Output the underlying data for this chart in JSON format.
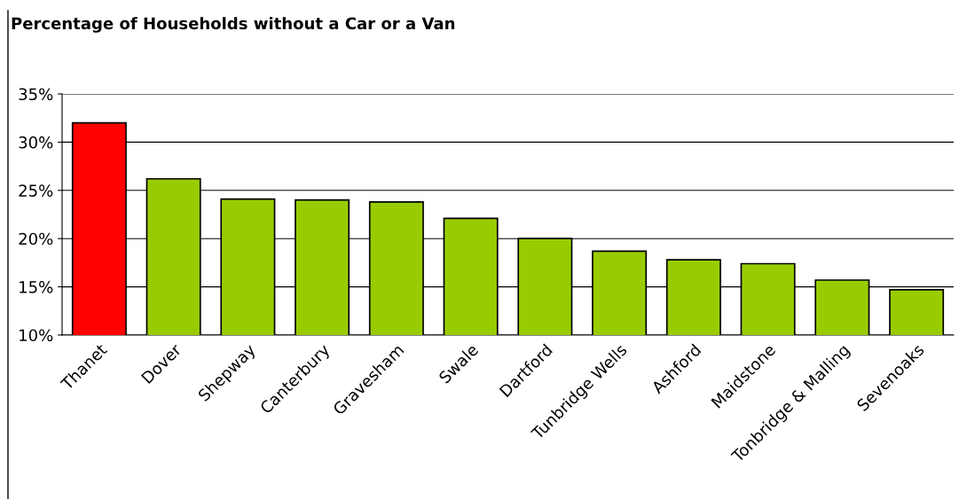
{
  "chart_data": {
    "type": "bar",
    "title": "Percentage of Households without a Car or a Van",
    "categories": [
      "Thanet",
      "Dover",
      "Shepway",
      "Canterbury",
      "Gravesham",
      "Swale",
      "Dartford",
      "Tunbridge Wells",
      "Ashford",
      "Maidstone",
      "Tonbridge & Malling",
      "Sevenoaks"
    ],
    "values": [
      32.0,
      26.2,
      24.1,
      24.0,
      23.8,
      22.1,
      20.0,
      18.7,
      17.8,
      17.4,
      15.7,
      14.7
    ],
    "colors": [
      "#ff0000",
      "#99cc00",
      "#99cc00",
      "#99cc00",
      "#99cc00",
      "#99cc00",
      "#99cc00",
      "#99cc00",
      "#99cc00",
      "#99cc00",
      "#99cc00",
      "#99cc00"
    ],
    "ylim": [
      10,
      35
    ],
    "yticks": [
      {
        "value": 10,
        "label": "10%"
      },
      {
        "value": 15,
        "label": "15%"
      },
      {
        "value": 20,
        "label": "20%"
      },
      {
        "value": 25,
        "label": "25%"
      },
      {
        "value": 30,
        "label": "30%"
      },
      {
        "value": 35,
        "label": "35%"
      }
    ],
    "grid": "y"
  }
}
